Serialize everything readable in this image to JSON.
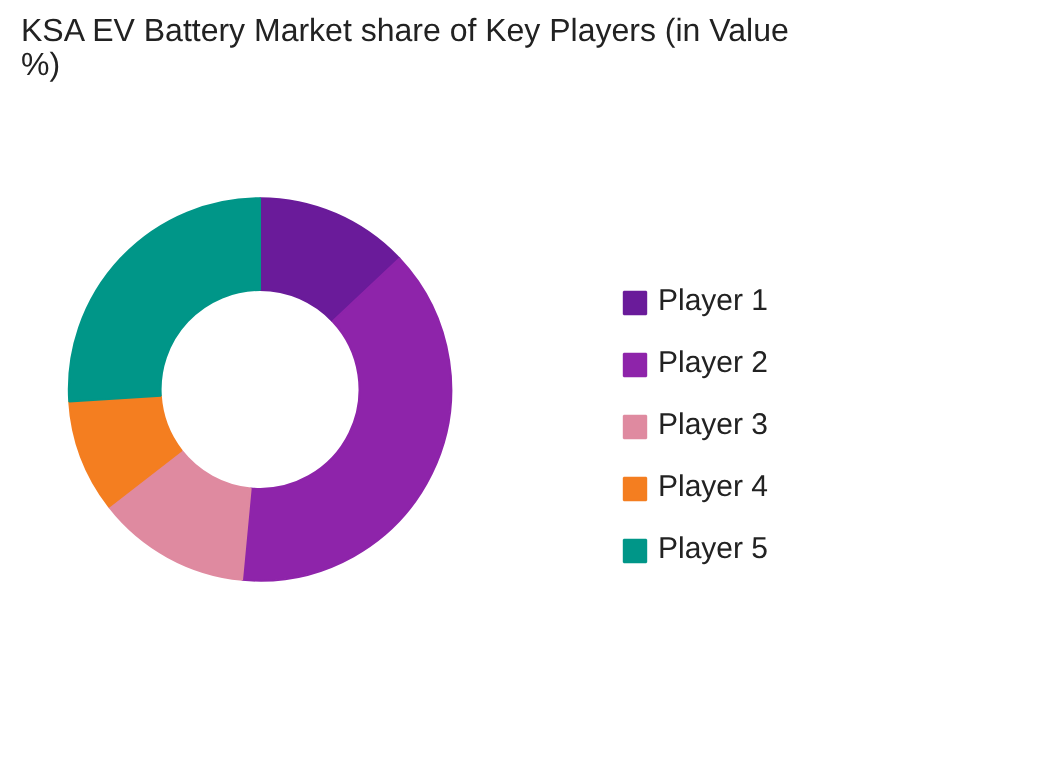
{
  "chart_data": {
    "type": "donut",
    "title": "KSA EV Battery Market share of Key Players (in Value %)",
    "categories": [
      "Player 1",
      "Player 2",
      "Player 3",
      "Player 4",
      "Player 5"
    ],
    "values": [
      13,
      38.5,
      13,
      9.5,
      26
    ],
    "colors": [
      "#6a1b9a",
      "#8e24aa",
      "#df8aa0",
      "#f47e20",
      "#009688"
    ],
    "legend": "right"
  }
}
